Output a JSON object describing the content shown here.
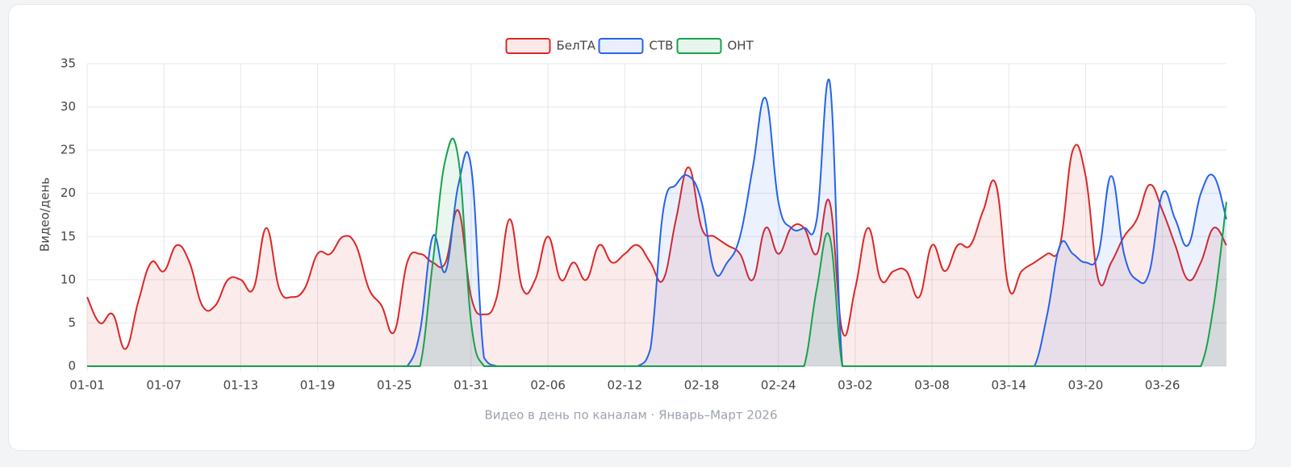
{
  "chart_data": {
    "type": "line",
    "title": "Видео в день по каналам · Январь–Март 2026",
    "y_label": "Видео/день",
    "categories": [
      "01-01",
      null,
      null,
      null,
      null,
      null,
      "01-07",
      null,
      null,
      null,
      null,
      null,
      "01-13",
      null,
      null,
      null,
      null,
      null,
      "01-19",
      null,
      null,
      null,
      null,
      null,
      "01-25",
      null,
      null,
      null,
      null,
      null,
      "01-31",
      null,
      null,
      null,
      null,
      null,
      "02-06",
      null,
      null,
      null,
      null,
      null,
      "02-12",
      null,
      null,
      null,
      null,
      null,
      "02-18",
      null,
      null,
      null,
      null,
      null,
      "02-24",
      null,
      null,
      null,
      null,
      null,
      "03-02",
      null,
      null,
      null,
      null,
      null,
      "03-08",
      null,
      null,
      null,
      null,
      null,
      "03-14",
      null,
      null,
      null,
      null,
      null,
      "03-20",
      null,
      null,
      null,
      null,
      null,
      "03-26",
      null,
      null,
      null,
      null,
      null
    ],
    "series": [
      {
        "name": "БелТА",
        "color": "#dc2626",
        "values": [
          8,
          5,
          6,
          2,
          7.5,
          12,
          11,
          14,
          12,
          7,
          7,
          10,
          10,
          9,
          16,
          9,
          8,
          9,
          13,
          13,
          15,
          14,
          9,
          7,
          4,
          12,
          13,
          12,
          12,
          18,
          8,
          6,
          8,
          17,
          9,
          10,
          15,
          10,
          12,
          10,
          14,
          12,
          13,
          14,
          12,
          10,
          17,
          23,
          16,
          15,
          14,
          13,
          10,
          16,
          13,
          16,
          16,
          13,
          19,
          4,
          9,
          16,
          10,
          11,
          11,
          8,
          14,
          11,
          14,
          14,
          18,
          21,
          9,
          11,
          12,
          13,
          14,
          25,
          22,
          10,
          12,
          15,
          17,
          21,
          18,
          14,
          10,
          12,
          16,
          14
        ]
      },
      {
        "name": "СТВ",
        "color": "#2563eb",
        "values": [
          0,
          0,
          0,
          0,
          0,
          0,
          0,
          0,
          0,
          0,
          0,
          0,
          0,
          0,
          0,
          0,
          0,
          0,
          0,
          0,
          0,
          0,
          0,
          0,
          0,
          0,
          4,
          15,
          11,
          21,
          23,
          1,
          0,
          0,
          0,
          0,
          0,
          0,
          0,
          0,
          0,
          0,
          0,
          0,
          2,
          18,
          21,
          22,
          19,
          11,
          12,
          15,
          23,
          31,
          19,
          16,
          16,
          17,
          33,
          0,
          0,
          0,
          0,
          0,
          0,
          0,
          0,
          0,
          0,
          0,
          0,
          0,
          0,
          0,
          0,
          6,
          14,
          13,
          12,
          13,
          22,
          13,
          10,
          11,
          20,
          17,
          14,
          20,
          22,
          17
        ]
      },
      {
        "name": "ОНТ",
        "color": "#16a34a",
        "values": [
          0,
          0,
          0,
          0,
          0,
          0,
          0,
          0,
          0,
          0,
          0,
          0,
          0,
          0,
          0,
          0,
          0,
          0,
          0,
          0,
          0,
          0,
          0,
          0,
          0,
          0,
          0,
          12,
          24,
          24,
          5,
          0,
          0,
          0,
          0,
          0,
          0,
          0,
          0,
          0,
          0,
          0,
          0,
          0,
          0,
          0,
          0,
          0,
          0,
          0,
          0,
          0,
          0,
          0,
          0,
          0,
          0,
          9,
          15,
          0,
          0,
          0,
          0,
          0,
          0,
          0,
          0,
          0,
          0,
          0,
          0,
          0,
          0,
          0,
          0,
          0,
          0,
          0,
          0,
          0,
          0,
          0,
          0,
          0,
          0,
          0,
          0,
          0,
          7,
          19
        ]
      }
    ],
    "ylim": [
      0,
      35
    ],
    "yticks": [
      0,
      5,
      10,
      15,
      20,
      25,
      30,
      35
    ],
    "grid": true,
    "legend": "top"
  }
}
